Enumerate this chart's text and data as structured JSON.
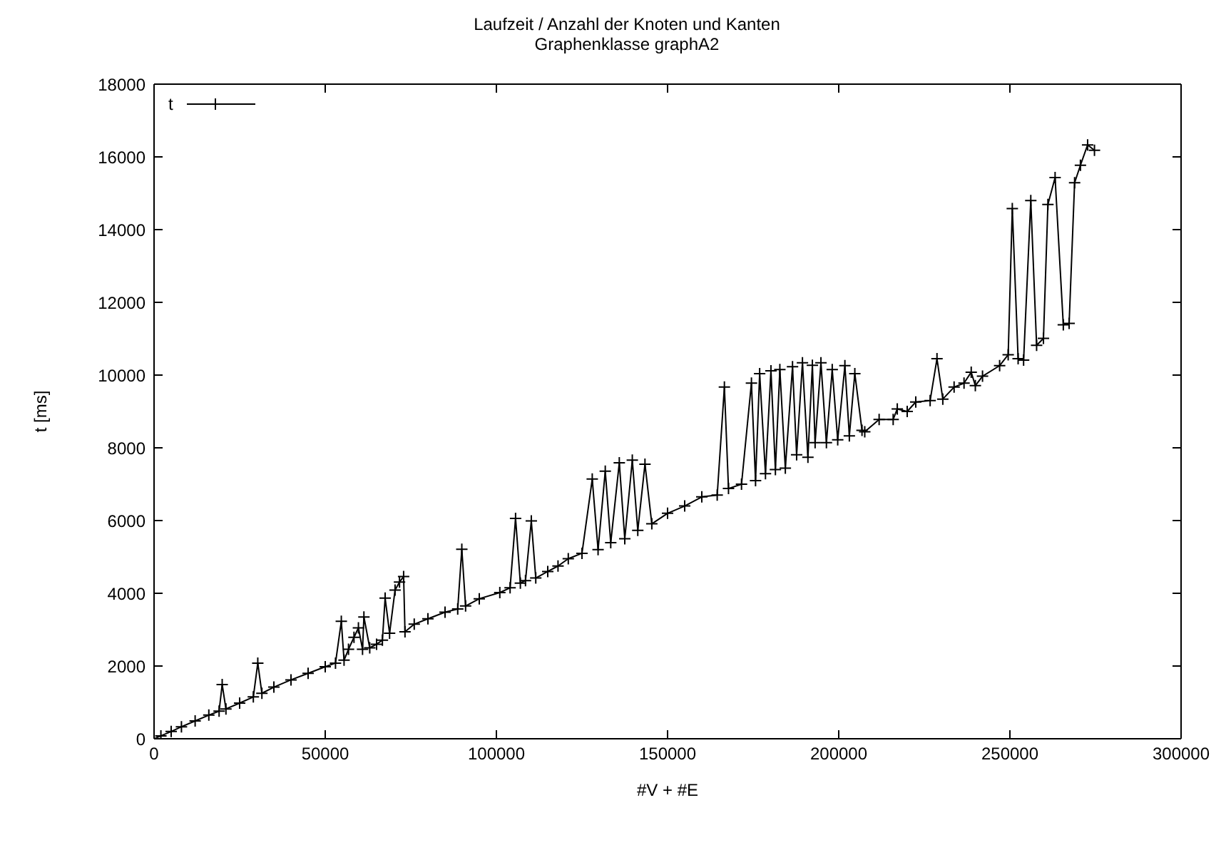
{
  "chart_data": {
    "type": "line",
    "title": "Laufzeit / Anzahl der Knoten und Kanten",
    "subtitle": "Graphenklasse graphA2",
    "xlabel": "#V + #E",
    "ylabel": "t [ms]",
    "xlim": [
      0,
      300000
    ],
    "xticks": [
      0,
      50000,
      100000,
      150000,
      200000,
      250000,
      300000
    ],
    "ylim": [
      0,
      18000
    ],
    "yticks": [
      0,
      2000,
      4000,
      6000,
      8000,
      10000,
      12000,
      14000,
      16000,
      18000
    ],
    "grid": false,
    "legend": "top left",
    "marker": "cross",
    "line_style": "solid",
    "series": [
      {
        "name": "t",
        "color": "#000000",
        "x": [
          0,
          2000,
          5000,
          8000,
          12000,
          16000,
          19000,
          19900,
          21000,
          25000,
          29000,
          30300,
          31500,
          35000,
          40000,
          45000,
          50000,
          53000,
          54700,
          55500,
          56800,
          58400,
          59700,
          60900,
          61300,
          63000,
          65000,
          66700,
          67500,
          68800,
          70400,
          71700,
          72900,
          73300,
          76000,
          80000,
          85000,
          88700,
          89900,
          91000,
          95000,
          101000,
          104000,
          105600,
          107000,
          108500,
          110200,
          111500,
          115000,
          118000,
          121000,
          125000,
          128000,
          129700,
          131800,
          133400,
          135900,
          137500,
          139700,
          141300,
          143400,
          145400,
          150000,
          155000,
          160000,
          164500,
          166600,
          167800,
          171600,
          174500,
          175700,
          176900,
          178600,
          180200,
          181500,
          182800,
          184400,
          186500,
          187700,
          189400,
          191000,
          192300,
          193100,
          194800,
          196400,
          198100,
          199700,
          201800,
          203100,
          204700,
          206800,
          207600,
          211800,
          215900,
          217100,
          220000,
          222500,
          226700,
          228700,
          230400,
          233700,
          236600,
          238700,
          239900,
          242000,
          247000,
          249500,
          250700,
          252400,
          254000,
          256100,
          257800,
          259800,
          261100,
          263200,
          265600,
          267300,
          268900,
          270600,
          272700,
          274700
        ],
        "values": [
          0,
          80,
          200,
          330,
          490,
          650,
          760,
          1490,
          820,
          980,
          1150,
          2080,
          1250,
          1420,
          1620,
          1800,
          1980,
          2080,
          3230,
          2160,
          2460,
          2790,
          3050,
          2460,
          3350,
          2500,
          2600,
          2710,
          3870,
          2900,
          4090,
          4310,
          4460,
          2940,
          3150,
          3300,
          3480,
          3570,
          5210,
          3650,
          3850,
          4020,
          4150,
          6060,
          4280,
          4350,
          5990,
          4420,
          4600,
          4750,
          4950,
          5100,
          7140,
          5200,
          7360,
          5390,
          7590,
          5500,
          7660,
          5730,
          7550,
          5910,
          6200,
          6400,
          6650,
          6700,
          9670,
          6880,
          7000,
          9780,
          7100,
          10040,
          7290,
          10120,
          7400,
          10150,
          7440,
          10230,
          7810,
          10340,
          7740,
          10270,
          8140,
          10340,
          8140,
          10150,
          8220,
          10260,
          8330,
          10040,
          8480,
          8440,
          8780,
          8780,
          9070,
          9000,
          9260,
          9300,
          10450,
          9340,
          9670,
          9780,
          10080,
          9710,
          9970,
          10260,
          10560,
          14580,
          10450,
          10410,
          14800,
          10820,
          11010,
          14690,
          15430,
          11380,
          11420,
          15290,
          15770,
          16330,
          16180
        ]
      }
    ]
  }
}
